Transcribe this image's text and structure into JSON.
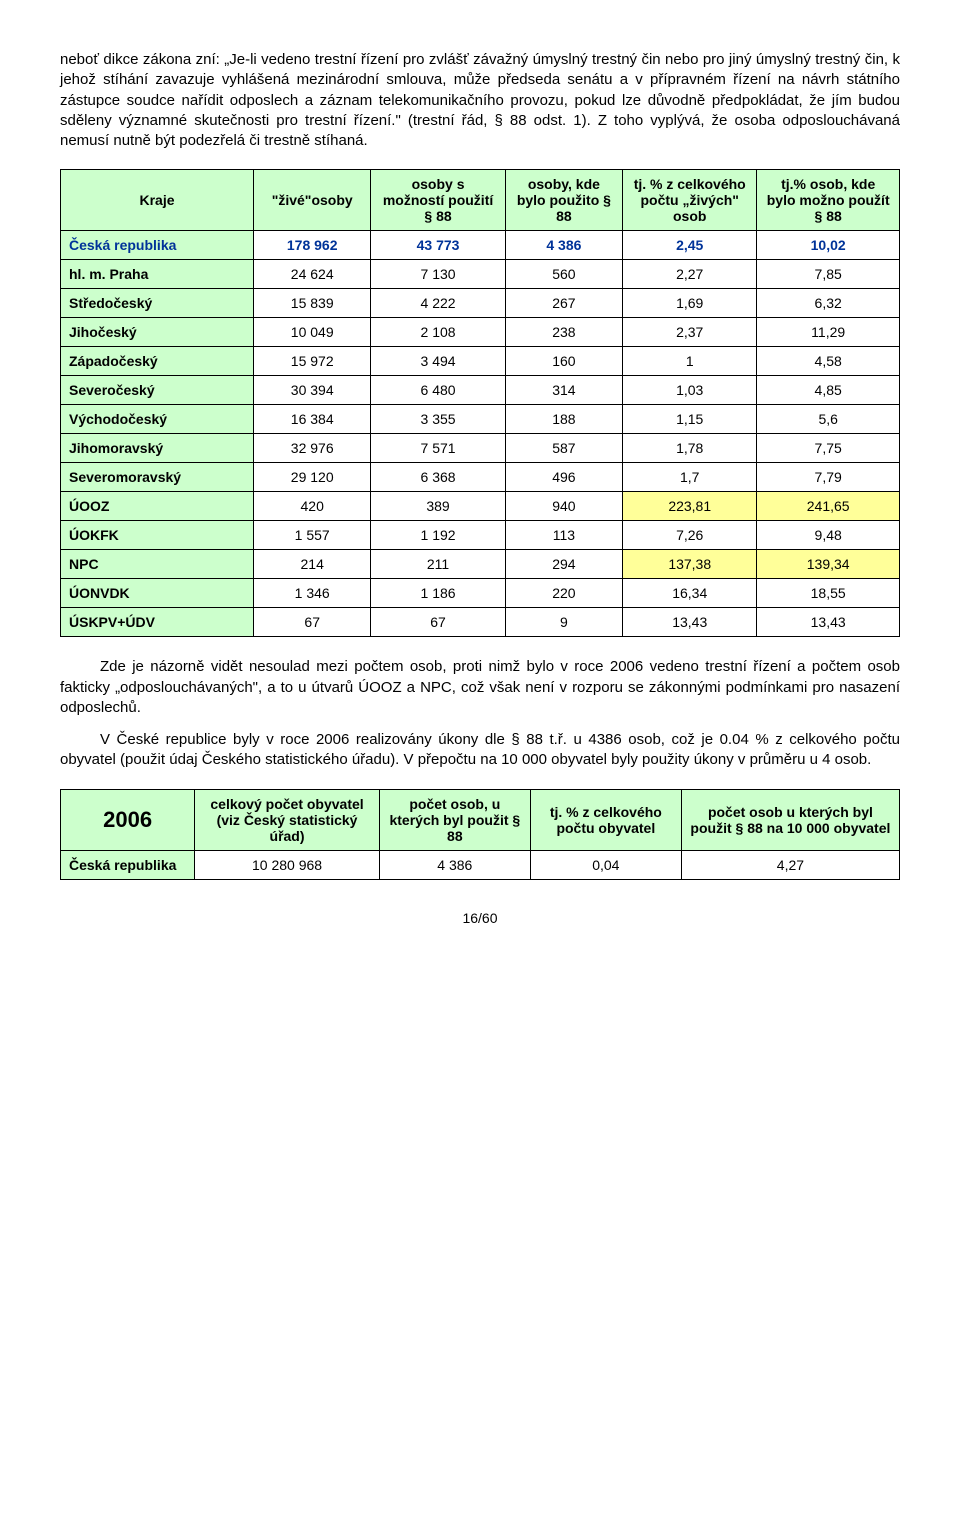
{
  "para1": "neboť dikce zákona zní: „Je-li vedeno trestní řízení pro zvlášť závažný úmyslný trestný čin nebo pro jiný úmyslný trestný čin, k jehož stíhání zavazuje vyhlášená mezinárodní smlouva, může předseda senátu a v přípravném řízení na návrh státního zástupce soudce nařídit odposlech a záznam telekomunikačního provozu, pokud lze důvodně předpokládat, že jím budou sděleny významné skutečnosti pro trestní řízení.\" (trestní řád, § 88 odst. 1). Z toho vyplývá, že osoba odposlouchávaná nemusí nutně být podezřelá či trestně stíhaná.",
  "table1": {
    "headers": [
      "Kraje",
      "\"živé\"osoby",
      "osoby s možností použití § 88",
      "osoby, kde bylo použito § 88",
      "tj. % z celkového počtu „živých\" osob",
      "tj.% osob, kde bylo možno použít § 88"
    ],
    "rows": [
      {
        "label": "Česká republika",
        "v": [
          "178 962",
          "43 773",
          "4 386",
          "2,45",
          "10,02"
        ],
        "cr": true
      },
      {
        "label": "hl. m. Praha",
        "v": [
          "24 624",
          "7 130",
          "560",
          "2,27",
          "7,85"
        ]
      },
      {
        "label": "Středočeský",
        "v": [
          "15 839",
          "4 222",
          "267",
          "1,69",
          "6,32"
        ]
      },
      {
        "label": "Jihočeský",
        "v": [
          "10 049",
          "2 108",
          "238",
          "2,37",
          "11,29"
        ]
      },
      {
        "label": "Západočeský",
        "v": [
          "15 972",
          "3 494",
          "160",
          "1",
          "4,58"
        ]
      },
      {
        "label": "Severočeský",
        "v": [
          "30 394",
          "6 480",
          "314",
          "1,03",
          "4,85"
        ]
      },
      {
        "label": "Východočeský",
        "v": [
          "16 384",
          "3 355",
          "188",
          "1,15",
          "5,6"
        ]
      },
      {
        "label": "Jihomoravský",
        "v": [
          "32 976",
          "7 571",
          "587",
          "1,78",
          "7,75"
        ]
      },
      {
        "label": "Severomoravský",
        "v": [
          "29 120",
          "6 368",
          "496",
          "1,7",
          "7,79"
        ]
      },
      {
        "label": "ÚOOZ",
        "v": [
          "420",
          "389",
          "940",
          "223,81",
          "241,65"
        ],
        "hl": [
          3,
          4
        ]
      },
      {
        "label": "ÚOKFK",
        "v": [
          "1 557",
          "1 192",
          "113",
          "7,26",
          "9,48"
        ]
      },
      {
        "label": "NPC",
        "v": [
          "214",
          "211",
          "294",
          "137,38",
          "139,34"
        ],
        "hl": [
          3,
          4
        ]
      },
      {
        "label": "ÚONVDK",
        "v": [
          "1 346",
          "1 186",
          "220",
          "16,34",
          "18,55"
        ]
      },
      {
        "label": "ÚSKPV+ÚDV",
        "v": [
          "67",
          "67",
          "9",
          "13,43",
          "13,43"
        ]
      }
    ]
  },
  "para2": "Zde je názorně vidět nesoulad mezi počtem osob, proti nimž bylo v roce 2006 vedeno trestní řízení a počtem osob fakticky „odposlouchávaných\", a to u útvarů ÚOOZ a NPC, což však není v rozporu se zákonnými podmínkami pro nasazení odposlechů.",
  "para3": "V České republice byly v roce 2006  realizovány úkony dle § 88 t.ř.  u 4386 osob, což je 0.04 % z celkového počtu obyvatel (použit údaj Českého statistického úřadu). V přepočtu na  10 000 obyvatel byly použity úkony  v průměru u 4 osob.",
  "table2": {
    "headers": [
      "2006",
      "celkový počet obyvatel (viz Český statistický úřad)",
      "počet osob, u kterých byl použit § 88",
      "tj. % z celkového počtu obyvatel",
      "počet osob u kterých byl použit § 88 na 10 000 obyvatel"
    ],
    "row": {
      "label": "Česká republika",
      "v": [
        "10 280 968",
        "4 386",
        "0,04",
        "4,27"
      ]
    }
  },
  "pageNum": "16/60",
  "colors": {
    "headerBg": "#ccffcc",
    "highlight": "#ffff99",
    "crText": "#003399"
  }
}
